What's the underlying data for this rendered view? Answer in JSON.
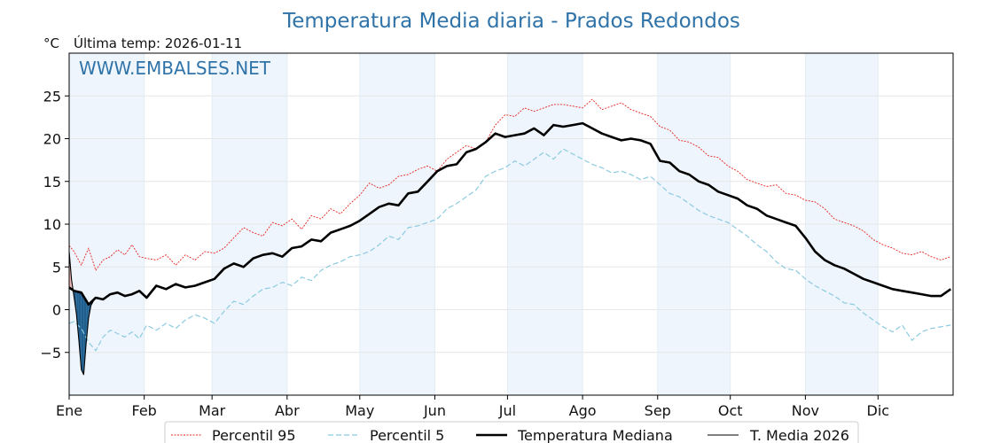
{
  "chart_data": {
    "type": "line",
    "title": "Temperatura Media diaria - Prados Redondos",
    "subtitle": "Última temp: 2026-01-11",
    "yunit": "°C",
    "watermark": "WWW.EMBALSES.NET",
    "x_unit": "day_of_year",
    "xlim": [
      1,
      366
    ],
    "ylim": [
      -10,
      30
    ],
    "yticks": [
      -5,
      0,
      5,
      10,
      15,
      20,
      25
    ],
    "ytick_labels": [
      "−5",
      "0",
      "5",
      "10",
      "15",
      "20",
      "25"
    ],
    "months": [
      {
        "label": "Ene",
        "start": 1
      },
      {
        "label": "Feb",
        "start": 32
      },
      {
        "label": "Mar",
        "start": 60
      },
      {
        "label": "Abr",
        "start": 91
      },
      {
        "label": "May",
        "start": 121
      },
      {
        "label": "Jun",
        "start": 152
      },
      {
        "label": "Jul",
        "start": 182
      },
      {
        "label": "Ago",
        "start": 213
      },
      {
        "label": "Sep",
        "start": 244
      },
      {
        "label": "Oct",
        "start": 274
      },
      {
        "label": "Nov",
        "start": 305
      },
      {
        "label": "Dic",
        "start": 335
      }
    ],
    "grid": true,
    "legend_position": "bottom-center",
    "colors": {
      "p95": "#e8241f",
      "p5": "#8ccbe0",
      "median": "#000000",
      "current": "#000000",
      "band_above": "#f2b8b8",
      "band_below": "#1f5f8f",
      "month_shade": "#eef5fc"
    },
    "series": [
      {
        "name": "Percentil 95",
        "key": "p95",
        "x": [
          1,
          3,
          6,
          9,
          12,
          15,
          18,
          21,
          24,
          27,
          30,
          33,
          37,
          41,
          45,
          49,
          53,
          57,
          61,
          65,
          69,
          73,
          77,
          81,
          85,
          89,
          93,
          97,
          101,
          105,
          109,
          113,
          117,
          121,
          125,
          129,
          133,
          137,
          141,
          145,
          149,
          153,
          157,
          161,
          165,
          169,
          173,
          177,
          181,
          185,
          189,
          193,
          197,
          201,
          205,
          209,
          213,
          217,
          221,
          225,
          229,
          233,
          237,
          241,
          245,
          249,
          253,
          257,
          261,
          265,
          269,
          273,
          277,
          281,
          285,
          289,
          293,
          297,
          301,
          305,
          309,
          313,
          317,
          321,
          325,
          329,
          333,
          337,
          341,
          345,
          349,
          353,
          357,
          361,
          365
        ],
        "y": [
          7.5,
          6.8,
          5.2,
          7.2,
          4.6,
          5.8,
          6.2,
          7.0,
          6.4,
          7.6,
          6.2,
          6.0,
          5.8,
          6.4,
          5.2,
          6.4,
          5.8,
          6.8,
          6.6,
          7.2,
          8.4,
          9.6,
          9.0,
          8.6,
          10.2,
          9.8,
          10.6,
          9.4,
          11.0,
          10.6,
          11.8,
          11.2,
          12.4,
          13.4,
          14.8,
          14.2,
          14.6,
          15.6,
          15.8,
          16.4,
          16.8,
          16.2,
          17.6,
          18.4,
          19.2,
          18.8,
          19.6,
          21.6,
          22.8,
          22.6,
          23.6,
          23.2,
          23.6,
          24.0,
          24.0,
          23.8,
          23.6,
          24.6,
          23.4,
          23.8,
          24.2,
          23.4,
          23.0,
          22.6,
          21.4,
          21.0,
          19.8,
          19.6,
          19.0,
          18.0,
          17.8,
          16.8,
          16.2,
          15.2,
          14.8,
          14.4,
          14.6,
          13.6,
          13.4,
          12.8,
          12.6,
          11.8,
          10.6,
          10.2,
          9.8,
          9.2,
          8.2,
          7.6,
          7.2,
          6.6,
          6.4,
          6.8,
          6.2,
          5.8,
          6.2
        ]
      },
      {
        "name": "Percentil 5",
        "key": "p5",
        "x": [
          1,
          3,
          6,
          9,
          12,
          15,
          18,
          21,
          24,
          27,
          30,
          33,
          37,
          41,
          45,
          49,
          53,
          57,
          61,
          65,
          69,
          73,
          77,
          81,
          85,
          89,
          93,
          97,
          101,
          105,
          109,
          113,
          117,
          121,
          125,
          129,
          133,
          137,
          141,
          145,
          149,
          153,
          157,
          161,
          165,
          169,
          173,
          177,
          181,
          185,
          189,
          193,
          197,
          201,
          205,
          209,
          213,
          217,
          221,
          225,
          229,
          233,
          237,
          241,
          245,
          249,
          253,
          257,
          261,
          265,
          269,
          273,
          277,
          281,
          285,
          289,
          293,
          297,
          301,
          305,
          309,
          313,
          317,
          321,
          325,
          329,
          333,
          337,
          341,
          345,
          349,
          353,
          357,
          361,
          365
        ],
        "y": [
          -1.6,
          -1.4,
          -2.2,
          -3.8,
          -4.8,
          -3.2,
          -2.4,
          -2.8,
          -3.2,
          -2.6,
          -3.4,
          -1.8,
          -2.4,
          -1.6,
          -2.2,
          -1.2,
          -0.6,
          -1.0,
          -1.6,
          -0.2,
          1.0,
          0.6,
          1.6,
          2.4,
          2.6,
          3.2,
          2.8,
          3.8,
          3.4,
          4.6,
          5.2,
          5.6,
          6.2,
          6.4,
          6.8,
          7.6,
          8.6,
          8.2,
          9.6,
          9.8,
          10.2,
          10.6,
          11.8,
          12.4,
          13.2,
          14.0,
          15.6,
          16.2,
          16.6,
          17.4,
          16.8,
          17.6,
          18.4,
          17.6,
          18.8,
          18.2,
          17.6,
          17.0,
          16.6,
          16.0,
          16.2,
          15.8,
          15.2,
          15.6,
          14.6,
          13.6,
          13.2,
          12.4,
          11.6,
          11.0,
          10.6,
          10.2,
          9.4,
          8.6,
          7.6,
          6.8,
          5.6,
          4.8,
          4.6,
          3.6,
          2.8,
          2.2,
          1.6,
          0.8,
          0.6,
          -0.4,
          -1.2,
          -2.0,
          -2.6,
          -1.8,
          -3.6,
          -2.6,
          -2.2,
          -2.0,
          -1.8
        ]
      },
      {
        "name": "Temperatura Mediana",
        "key": "median",
        "x": [
          1,
          3,
          6,
          9,
          12,
          15,
          18,
          21,
          24,
          27,
          30,
          33,
          37,
          41,
          45,
          49,
          53,
          57,
          61,
          65,
          69,
          73,
          77,
          81,
          85,
          89,
          93,
          97,
          101,
          105,
          109,
          113,
          117,
          121,
          125,
          129,
          133,
          137,
          141,
          145,
          149,
          153,
          157,
          161,
          165,
          169,
          173,
          177,
          181,
          185,
          189,
          193,
          197,
          201,
          205,
          209,
          213,
          217,
          221,
          225,
          229,
          233,
          237,
          241,
          245,
          249,
          253,
          257,
          261,
          265,
          269,
          273,
          277,
          281,
          285,
          289,
          293,
          297,
          301,
          305,
          309,
          313,
          317,
          321,
          325,
          329,
          333,
          337,
          341,
          345,
          349,
          353,
          357,
          361,
          365
        ],
        "y": [
          2.6,
          2.2,
          2.0,
          0.6,
          1.4,
          1.2,
          1.8,
          2.0,
          1.6,
          1.8,
          2.2,
          1.4,
          2.8,
          2.4,
          3.0,
          2.6,
          2.8,
          3.2,
          3.6,
          4.8,
          5.4,
          5.0,
          6.0,
          6.4,
          6.6,
          6.2,
          7.2,
          7.4,
          8.2,
          8.0,
          9.0,
          9.4,
          9.8,
          10.4,
          11.2,
          12.0,
          12.4,
          12.2,
          13.6,
          13.8,
          15.0,
          16.2,
          16.8,
          17.0,
          18.4,
          18.8,
          19.6,
          20.6,
          20.2,
          20.4,
          20.6,
          21.2,
          20.4,
          21.6,
          21.4,
          21.6,
          21.8,
          21.2,
          20.6,
          20.2,
          19.8,
          20.0,
          19.8,
          19.4,
          17.4,
          17.2,
          16.2,
          15.8,
          15.0,
          14.6,
          13.8,
          13.4,
          13.0,
          12.2,
          11.8,
          11.0,
          10.6,
          10.2,
          9.8,
          8.4,
          6.8,
          5.8,
          5.2,
          4.8,
          4.2,
          3.6,
          3.2,
          2.8,
          2.4,
          2.2,
          2.0,
          1.8,
          1.6,
          1.6,
          2.4
        ]
      },
      {
        "name": "T. Media 2026",
        "key": "current",
        "x": [
          1,
          2,
          3,
          4,
          5,
          6,
          7,
          8,
          9,
          10,
          11
        ],
        "y": [
          6.8,
          3.5,
          1.5,
          -0.5,
          -3.5,
          -7.0,
          -7.6,
          -4.0,
          -1.0,
          0.5,
          1.0
        ]
      }
    ]
  }
}
